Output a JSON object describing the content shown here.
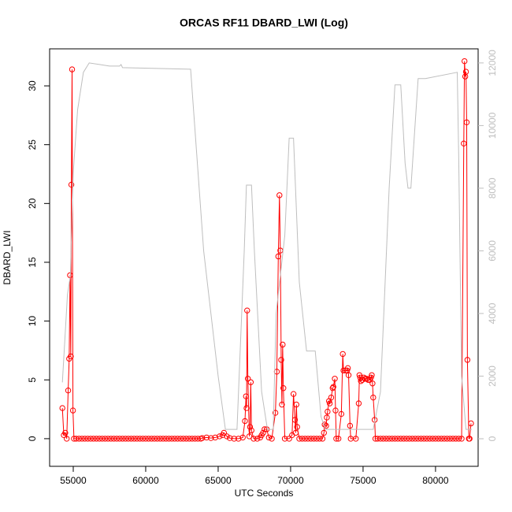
{
  "chart_data": {
    "type": "line",
    "title": "ORCAS RF11 DBARD_LWI (Log)",
    "xlabel": "UTC Seconds",
    "ylabel": "DBARD_LWI",
    "xlim": [
      53370,
      82940
    ],
    "ylim": [
      -2.35,
      33.15
    ],
    "y2lim": [
      -880,
      12450
    ],
    "xticks": [
      55000,
      60000,
      65000,
      70000,
      75000,
      80000
    ],
    "yticks": [
      0,
      5,
      10,
      15,
      20,
      25,
      30
    ],
    "y2ticks": [
      0,
      2000,
      4000,
      6000,
      8000,
      10000,
      12000
    ],
    "series": [
      {
        "color": "#ff0000",
        "marker": "circle",
        "x": [
          54250,
          54350,
          54450,
          54550,
          54650,
          54720,
          54780,
          54830,
          54870,
          54920,
          54980,
          55050,
          55200,
          55400,
          55600,
          55800,
          56000,
          56200,
          56400,
          56600,
          56800,
          57000,
          57200,
          57400,
          57600,
          57800,
          58000,
          58200,
          58400,
          58600,
          58800,
          59000,
          59200,
          59400,
          59600,
          59800,
          60000,
          60200,
          60400,
          60600,
          60800,
          61000,
          61200,
          61400,
          61600,
          61800,
          62000,
          62200,
          62400,
          62600,
          62800,
          63000,
          63200,
          63400,
          63600,
          63800,
          63900,
          64200,
          64500,
          64800,
          65100,
          65300,
          65400,
          65600,
          65800,
          66100,
          66400,
          66700,
          66850,
          66920,
          66960,
          67000,
          67050,
          67150,
          67200,
          67250,
          67300,
          67450,
          67700,
          67900,
          68000,
          68100,
          68200,
          68350,
          68500,
          68700,
          68950,
          69050,
          69150,
          69230,
          69290,
          69350,
          69400,
          69450,
          69500,
          69600,
          69900,
          70100,
          70200,
          70300,
          70350,
          70400,
          70450,
          70600,
          70800,
          71000,
          71200,
          71400,
          71600,
          71800,
          72000,
          72200,
          72300,
          72350,
          72450,
          72500,
          72550,
          72650,
          72700,
          72800,
          72900,
          72950,
          73050,
          73100,
          73150,
          73300,
          73500,
          73600,
          73650,
          73800,
          73900,
          73950,
          74000,
          74100,
          74150,
          74500,
          74700,
          74750,
          74800,
          74850,
          74950,
          75050,
          75150,
          75250,
          75350,
          75450,
          75550,
          75600,
          75650,
          75700,
          75800,
          75850,
          76000,
          76200,
          76400,
          76600,
          76800,
          77000,
          77200,
          77400,
          77600,
          77800,
          78000,
          78200,
          78400,
          78600,
          78800,
          79000,
          79200,
          79400,
          79600,
          79800,
          80000,
          80200,
          80400,
          80600,
          80800,
          81000,
          81200,
          81400,
          81600,
          81800,
          81950,
          82000,
          82050,
          82100,
          82150,
          82200,
          82300,
          82350,
          82450
        ],
        "values": [
          2.6,
          0.3,
          0.5,
          0,
          4.1,
          6.8,
          13.9,
          7.0,
          21.6,
          31.4,
          2.4,
          0,
          0,
          0,
          0,
          0,
          0,
          0,
          0,
          0,
          0,
          0,
          0,
          0,
          0,
          0,
          0,
          0,
          0,
          0,
          0,
          0,
          0,
          0,
          0,
          0,
          0,
          0,
          0,
          0,
          0,
          0,
          0,
          0,
          0,
          0,
          0,
          0,
          0,
          0,
          0,
          0,
          0,
          0,
          0,
          0,
          0.05,
          0.1,
          0.05,
          0.1,
          0.2,
          0.3,
          0.5,
          0.2,
          0.05,
          0,
          0,
          0.1,
          1.5,
          3.6,
          2.6,
          10.9,
          5.1,
          0.2,
          1.0,
          4.8,
          0.7,
          0,
          0,
          0.1,
          0.3,
          0.5,
          0.8,
          0.8,
          0.1,
          0,
          2.2,
          5.7,
          15.5,
          20.7,
          16.0,
          6.7,
          2.9,
          8.0,
          4.3,
          0,
          0,
          0.3,
          3.8,
          1.6,
          0.5,
          2.9,
          1.0,
          0,
          0,
          0,
          0,
          0,
          0,
          0,
          0,
          0,
          0.5,
          1.2,
          1.1,
          1.8,
          2.3,
          3.2,
          3.0,
          3.5,
          4.3,
          4.4,
          5.1,
          2.4,
          0,
          0,
          2.1,
          7.2,
          5.8,
          5.8,
          5.8,
          6.0,
          5.4,
          1.1,
          0,
          0,
          3.0,
          5.4,
          5.2,
          4.9,
          5.0,
          5.2,
          5.1,
          5.1,
          5.0,
          5.0,
          5.2,
          5.4,
          4.7,
          3.5,
          1.6,
          0,
          0,
          0,
          0,
          0,
          0,
          0,
          0,
          0,
          0,
          0,
          0,
          0,
          0,
          0,
          0,
          0,
          0,
          0,
          0,
          0,
          0,
          0,
          0,
          0,
          0,
          0,
          0,
          0,
          0,
          0,
          25.1,
          32.1,
          30.8,
          31.2,
          26.9,
          6.7,
          0,
          0,
          1.3
        ]
      },
      {
        "color": "#bebebe",
        "axis": "y2",
        "x": [
          54250,
          54600,
          54800,
          55000,
          55300,
          55700,
          56100,
          57500,
          58200,
          58300,
          58400,
          63100,
          64000,
          65000,
          65500,
          66300,
          66800,
          66950,
          67300,
          67500,
          68000,
          68400,
          68800,
          69000,
          69600,
          69900,
          70200,
          70600,
          71100,
          71700,
          72100,
          72400,
          75700,
          76200,
          76800,
          77200,
          77600,
          77900,
          78100,
          78300,
          78800,
          79300,
          81500,
          81600,
          81800,
          82100,
          82350,
          82500
        ],
        "values": [
          1800,
          4600,
          5200,
          8500,
          10500,
          11700,
          12000,
          11900,
          11900,
          11950,
          11850,
          11800,
          6000,
          2000,
          300,
          300,
          6000,
          8100,
          8100,
          6000,
          1500,
          300,
          300,
          4000,
          6500,
          9600,
          9600,
          5000,
          2800,
          2800,
          700,
          300,
          300,
          1500,
          8000,
          11300,
          11300,
          8800,
          8000,
          8000,
          11500,
          11500,
          11700,
          9000,
          2000,
          300,
          300,
          300
        ]
      }
    ]
  }
}
